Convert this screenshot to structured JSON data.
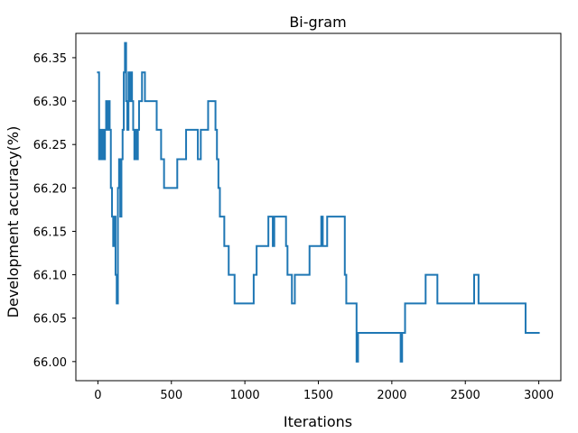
{
  "chart_data": {
    "type": "line",
    "title": "Bi-gram",
    "xlabel": "Iterations",
    "ylabel": "Development accuracy(%)",
    "xlim": [
      -150,
      3150
    ],
    "ylim": [
      65.978,
      66.378
    ],
    "xticks": [
      0,
      500,
      1000,
      1500,
      2000,
      2500,
      3000
    ],
    "yticks": [
      66.0,
      66.05,
      66.1,
      66.15,
      66.2,
      66.25,
      66.3,
      66.35
    ],
    "ytick_labels": [
      "66.00",
      "66.05",
      "66.10",
      "66.15",
      "66.20",
      "66.25",
      "66.30",
      "66.35"
    ],
    "grid": false,
    "series": [
      {
        "color": "#1f77b4",
        "step": true,
        "x": [
          0,
          8,
          16,
          24,
          32,
          40,
          48,
          56,
          64,
          72,
          80,
          88,
          96,
          104,
          112,
          120,
          128,
          136,
          144,
          152,
          160,
          168,
          176,
          184,
          192,
          200,
          208,
          216,
          224,
          232,
          240,
          248,
          256,
          264,
          272,
          280,
          300,
          320,
          340,
          360,
          400,
          430,
          450,
          460,
          540,
          560,
          600,
          620,
          680,
          700,
          720,
          750,
          760,
          800,
          810,
          820,
          830,
          840,
          860,
          890,
          900,
          930,
          940,
          1000,
          1060,
          1080,
          1100,
          1160,
          1190,
          1200,
          1210,
          1280,
          1290,
          1300,
          1320,
          1340,
          1350,
          1440,
          1450,
          1520,
          1530,
          1560,
          1570,
          1680,
          1690,
          1760,
          1770,
          1790,
          1800,
          2060,
          2070,
          2090,
          2100,
          2160,
          2230,
          2240,
          2310,
          2320,
          2560,
          2570,
          2590,
          2600,
          2910,
          2920,
          3000
        ],
        "values": [
          66.333,
          66.233,
          66.267,
          66.233,
          66.267,
          66.233,
          66.267,
          66.3,
          66.267,
          66.3,
          66.267,
          66.2,
          66.167,
          66.133,
          66.167,
          66.1,
          66.067,
          66.2,
          66.233,
          66.167,
          66.233,
          66.267,
          66.333,
          66.367,
          66.3,
          66.267,
          66.333,
          66.3,
          66.333,
          66.3,
          66.267,
          66.233,
          66.267,
          66.233,
          66.267,
          66.3,
          66.333,
          66.3,
          66.3,
          66.3,
          66.267,
          66.233,
          66.2,
          66.2,
          66.233,
          66.233,
          66.267,
          66.267,
          66.233,
          66.267,
          66.267,
          66.3,
          66.3,
          66.267,
          66.233,
          66.2,
          66.167,
          66.167,
          66.133,
          66.1,
          66.1,
          66.067,
          66.067,
          66.067,
          66.1,
          66.133,
          66.133,
          66.167,
          66.133,
          66.167,
          66.167,
          66.133,
          66.1,
          66.1,
          66.067,
          66.1,
          66.1,
          66.133,
          66.133,
          66.167,
          66.133,
          66.167,
          66.167,
          66.1,
          66.067,
          66.0,
          66.033,
          66.033,
          66.033,
          66.0,
          66.033,
          66.067,
          66.067,
          66.067,
          66.1,
          66.1,
          66.067,
          66.067,
          66.1,
          66.1,
          66.067,
          66.067,
          66.033,
          66.033,
          66.033
        ]
      }
    ]
  }
}
